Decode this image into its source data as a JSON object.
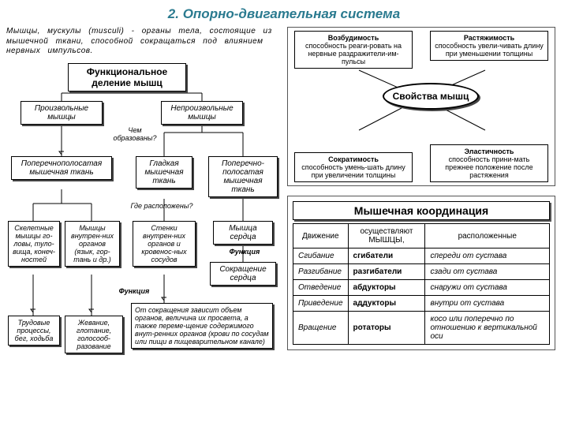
{
  "title": "2. Опорно-двигательная система",
  "intro": "Мышцы, мускулы (musculi) - органы тела, состоящие из мышечной ткани, способной сокращаться под влиянием нервных импульсов.",
  "flow": {
    "root": "Функциональное деление мышц",
    "vol": "Произвольные мышцы",
    "invol": "Непроизвольные мышцы",
    "q_formed": "Чем образованы?",
    "striated": "Поперечнополосатая мышечная ткань",
    "smooth": "Гладкая мышечная ткань",
    "striated2": "Поперечно-полосатая мышечная ткань",
    "q_where": "Где расположены?",
    "skel": "Скелетные мышцы го-ловы, туло-вища, конеч-ностей",
    "innerorg": "Мышцы внутрен-них органов (язык, гор-тань и др.)",
    "walls": "Стенки внутрен-них органов и кровенос-ных сосудов",
    "heart": "Мышца сердца",
    "func_lbl": "Функция",
    "heart_contr": "Сокращение сердца",
    "labor": "Трудовые процессы, бег, ходьба",
    "chew": "Жевание, глотание, голосооб-разование",
    "contract_dep": "От сокращения зависит объем органов, величина их просвета, а также переме-щение содержимого внут-ренних органов (крови по сосудам или пищи в пищеварительном канале)"
  },
  "props": {
    "center": "Свойства мышц",
    "tl": {
      "hd": "Возбудимость",
      "tx": "способность реаги-ровать на нервные раздражители-им-пульсы"
    },
    "tr": {
      "hd": "Растяжимость",
      "tx": "способность увели-чивать длину при уменьшении толщины"
    },
    "bl": {
      "hd": "Сократимость",
      "tx": "способность умень-шать длину при увеличении толщины"
    },
    "br": {
      "hd": "Эластичность",
      "tx": "способность прини-мать прежнее положение после растяжения"
    }
  },
  "coord": {
    "title": "Мышечная координация",
    "headers": [
      "Движение",
      "осуществляют МЫШЦЫ,",
      "расположенные"
    ],
    "rows": [
      [
        "Сгибание",
        "сгибатели",
        "спереди от сустава"
      ],
      [
        "Разгибание",
        "разгибатели",
        "сзади от сустава"
      ],
      [
        "Отведение",
        "абдукторы",
        "снаружи от сустава"
      ],
      [
        "Приведение",
        "аддукторы",
        "внутри от сустава"
      ],
      [
        "Вращение",
        "ротаторы",
        "косо или поперечно по отношению к вертикальной оси"
      ]
    ]
  },
  "colors": {
    "title": "#2a7a8f",
    "line": "#000000"
  }
}
